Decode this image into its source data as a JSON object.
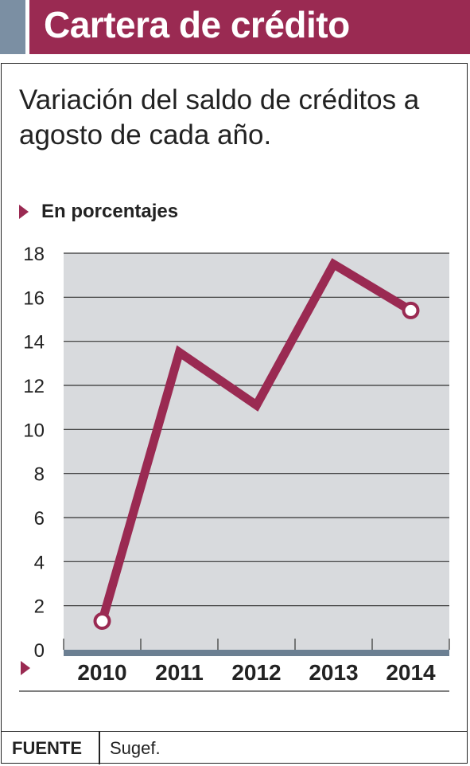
{
  "header": {
    "title": "Cartera de crédito"
  },
  "subtitle": "Variación del saldo de créditos a agosto de cada año.",
  "unit_label": "En porcentajes",
  "footer": {
    "source_label": "FUENTE",
    "source_value": "Sugef."
  },
  "colors": {
    "accent": "#9a2a52",
    "header_square": "#7b8fa3",
    "plot_bg": "#d8dadd",
    "axis_bar": "#6b7f92",
    "text": "#222222"
  },
  "chart_data": {
    "type": "line",
    "title": "",
    "xlabel": "",
    "ylabel": "",
    "categories": [
      "2010",
      "2011",
      "2012",
      "2013",
      "2014"
    ],
    "series": [
      {
        "values": [
          1.3,
          13.5,
          11.1,
          17.5,
          15.4
        ]
      }
    ],
    "ylim": [
      0,
      18
    ],
    "yticks": [
      0,
      2,
      4,
      6,
      8,
      10,
      12,
      14,
      16,
      18
    ],
    "grid": true,
    "legend": "none"
  }
}
